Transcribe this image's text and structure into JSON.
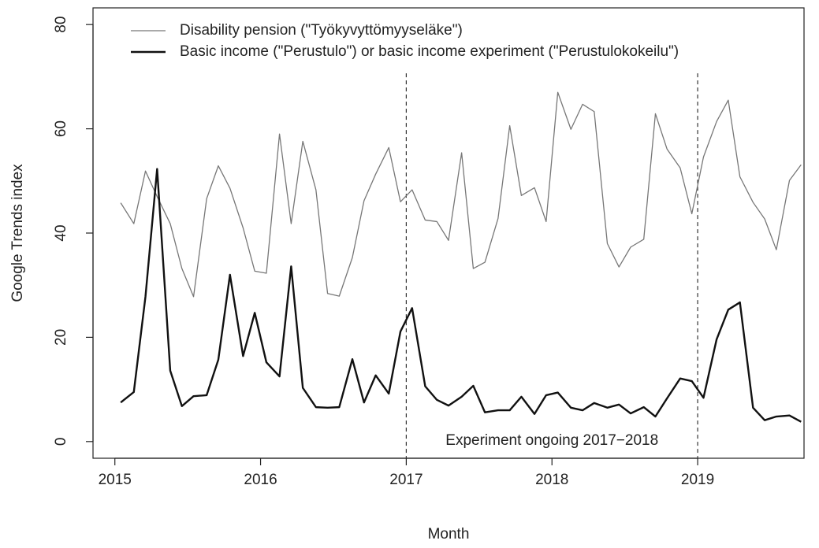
{
  "chart_data": {
    "type": "line",
    "x_label": "Month",
    "y_label": "Google Trends index",
    "annotation": "Experiment ongoing 2017−2018",
    "reference_lines": [
      2017,
      2019
    ],
    "x": [
      2015.04,
      2015.13,
      2015.21,
      2015.29,
      2015.38,
      2015.46,
      2015.54,
      2015.63,
      2015.71,
      2015.79,
      2015.88,
      2015.96,
      2016.04,
      2016.13,
      2016.21,
      2016.29,
      2016.38,
      2016.46,
      2016.54,
      2016.63,
      2016.71,
      2016.79,
      2016.88,
      2016.96,
      2017.04,
      2017.13,
      2017.21,
      2017.29,
      2017.38,
      2017.46,
      2017.54,
      2017.63,
      2017.71,
      2017.79,
      2017.88,
      2017.96,
      2018.04,
      2018.13,
      2018.21,
      2018.29,
      2018.38,
      2018.46,
      2018.54,
      2018.63,
      2018.71,
      2018.79,
      2018.88,
      2018.96,
      2019.04,
      2019.13,
      2019.21,
      2019.29,
      2019.38,
      2019.46,
      2019.54,
      2019.63,
      2019.71
    ],
    "series": [
      {
        "name": "Disability pension (\"Työkyvyttömyyseläke\")",
        "color": "#777777",
        "width": 1.3,
        "values": [
          45.8,
          41.8,
          51.9,
          47,
          41.8,
          33.2,
          27.8,
          46.6,
          52.9,
          48.6,
          41,
          32.7,
          32.3,
          59,
          41.8,
          57.6,
          48.3,
          28.4,
          27.9,
          35.3,
          46.2,
          51.3,
          56.4,
          46,
          48.3,
          42.5,
          42.2,
          38.6,
          55.4,
          33.2,
          34.4,
          42.8,
          60.6,
          47.2,
          48.7,
          42.2,
          67,
          59.9,
          64.7,
          63.3,
          38,
          33.5,
          37.3,
          38.8,
          62.9,
          56.1,
          52.5,
          43.7,
          54.6,
          61.4,
          65.5,
          50.8,
          45.9,
          42.7,
          36.8,
          50.1,
          53.1
        ]
      },
      {
        "name": "Basic income (\"Perustulo\") or basic income experiment (\"Perustulokokeilu\")",
        "color": "#111111",
        "width": 2.4,
        "values": [
          7.5,
          9.5,
          27.8,
          52.3,
          13.6,
          6.8,
          8.7,
          8.9,
          15.7,
          32,
          16.4,
          24.7,
          15.2,
          12.5,
          33.6,
          10.3,
          6.6,
          6.5,
          6.6,
          15.8,
          7.5,
          12.7,
          9.2,
          21.1,
          25.6,
          10.6,
          8,
          6.9,
          8.6,
          10.7,
          5.6,
          6,
          6,
          8.6,
          5.3,
          8.9,
          9.4,
          6.5,
          6,
          7.4,
          6.5,
          7.1,
          5.4,
          6.6,
          4.8,
          8.3,
          12.1,
          11.6,
          8.4,
          19.6,
          25.3,
          26.7,
          6.5,
          4.1,
          4.8,
          5,
          3.8
        ]
      }
    ],
    "xlim": [
      2014.85,
      2019.73
    ],
    "ylim": [
      -3.2,
      83.2
    ],
    "xticks": [
      2015,
      2016,
      2017,
      2018,
      2019
    ],
    "yticks": [
      0,
      20,
      40,
      60,
      80
    ],
    "legend": "top-left"
  }
}
